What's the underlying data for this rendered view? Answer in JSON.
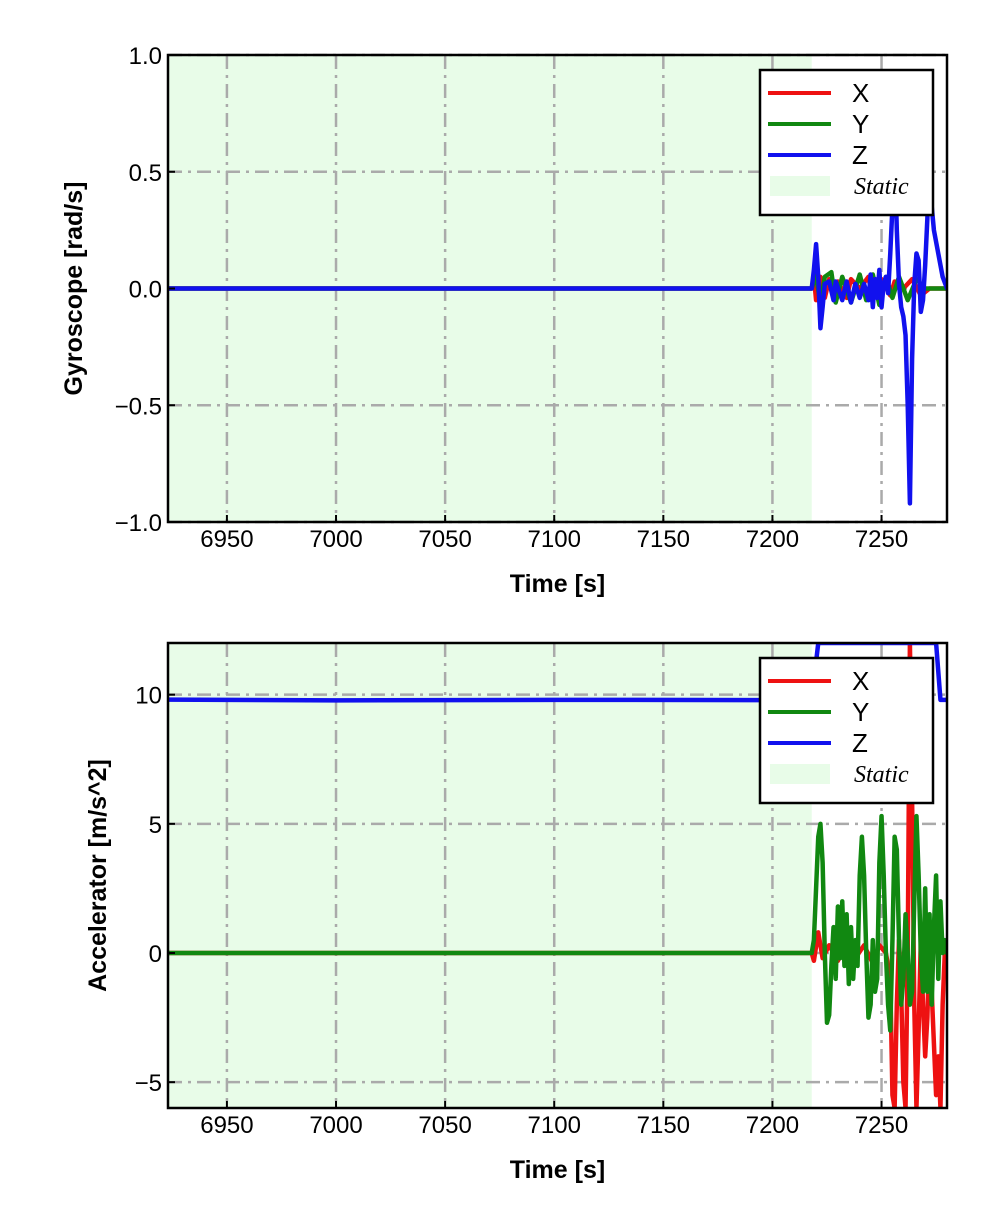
{
  "chart_data": [
    {
      "type": "line",
      "xlabel": "Time [s]",
      "ylabel": "Gyroscope [rad/s]",
      "xlim": [
        6923,
        7280
      ],
      "ylim": [
        -1.0,
        1.0
      ],
      "x_ticks": [
        6950,
        7000,
        7050,
        7100,
        7150,
        7200,
        7250
      ],
      "y_ticks": [
        -1.0,
        -0.5,
        0.0,
        0.5,
        1.0
      ],
      "y_tick_labels": [
        "−1.0",
        "−0.5",
        "0.0",
        "0.5",
        "1.0"
      ],
      "grid": true,
      "legend_position": "top-right",
      "static_region": {
        "label": "Static",
        "x_start": 6923,
        "x_end": 7218,
        "color": "#e8fce8"
      },
      "series": [
        {
          "name": "X",
          "color": "#ee1111",
          "points": [
            [
              6923,
              0
            ],
            [
              7218,
              0
            ],
            [
              7219,
              0.05
            ],
            [
              7220,
              -0.05
            ],
            [
              7222,
              0.05
            ],
            [
              7224,
              -0.04
            ],
            [
              7226,
              0.04
            ],
            [
              7228,
              -0.03
            ],
            [
              7230,
              0.03
            ],
            [
              7234,
              -0.04
            ],
            [
              7236,
              0.04
            ],
            [
              7240,
              0
            ],
            [
              7244,
              0.05
            ],
            [
              7246,
              -0.05
            ],
            [
              7250,
              0.04
            ],
            [
              7254,
              -0.03
            ],
            [
              7256,
              0.03
            ],
            [
              7260,
              0
            ],
            [
              7264,
              0.04
            ],
            [
              7268,
              -0.03
            ],
            [
              7272,
              0
            ],
            [
              7280,
              0
            ]
          ]
        },
        {
          "name": "Y",
          "color": "#118811",
          "points": [
            [
              6923,
              0
            ],
            [
              7218,
              0
            ],
            [
              7220,
              0.06
            ],
            [
              7222,
              -0.07
            ],
            [
              7224,
              0.05
            ],
            [
              7227,
              0.07
            ],
            [
              7229,
              -0.06
            ],
            [
              7232,
              0.05
            ],
            [
              7236,
              -0.06
            ],
            [
              7240,
              0.06
            ],
            [
              7243,
              -0.05
            ],
            [
              7246,
              0.06
            ],
            [
              7249,
              -0.07
            ],
            [
              7252,
              0.05
            ],
            [
              7255,
              -0.04
            ],
            [
              7258,
              0.05
            ],
            [
              7262,
              -0.05
            ],
            [
              7266,
              0.04
            ],
            [
              7270,
              0
            ],
            [
              7280,
              0
            ]
          ]
        },
        {
          "name": "Z",
          "color": "#1111ee",
          "points": [
            [
              6923,
              0
            ],
            [
              7218,
              0
            ],
            [
              7219,
              0.08
            ],
            [
              7220,
              0.19
            ],
            [
              7221,
              0.05
            ],
            [
              7222,
              -0.17
            ],
            [
              7223,
              -0.08
            ],
            [
              7224,
              0.02
            ],
            [
              7226,
              0.03
            ],
            [
              7228,
              -0.05
            ],
            [
              7229,
              0.03
            ],
            [
              7232,
              -0.05
            ],
            [
              7234,
              0.03
            ],
            [
              7236,
              -0.06
            ],
            [
              7238,
              0.02
            ],
            [
              7240,
              -0.04
            ],
            [
              7242,
              0.02
            ],
            [
              7244,
              -0.05
            ],
            [
              7245,
              0.06
            ],
            [
              7246,
              -0.08
            ],
            [
              7247,
              0.04
            ],
            [
              7248,
              -0.04
            ],
            [
              7249,
              0.08
            ],
            [
              7250,
              -0.08
            ],
            [
              7251,
              0.02
            ],
            [
              7252,
              0.05
            ],
            [
              7253,
              -0.02
            ],
            [
              7254,
              0.15
            ],
            [
              7255,
              0.35
            ],
            [
              7256,
              0.6
            ],
            [
              7257,
              0.25
            ],
            [
              7258,
              0.02
            ],
            [
              7259,
              -0.08
            ],
            [
              7260,
              -0.12
            ],
            [
              7261,
              -0.2
            ],
            [
              7262,
              -0.5
            ],
            [
              7263,
              -0.92
            ],
            [
              7264,
              -0.3
            ],
            [
              7265,
              0.02
            ],
            [
              7266,
              0.15
            ],
            [
              7267,
              0.12
            ],
            [
              7268,
              -0.1
            ],
            [
              7269,
              -0.05
            ],
            [
              7270,
              0.1
            ],
            [
              7271,
              0.3
            ],
            [
              7272,
              0.56
            ],
            [
              7273,
              0.35
            ],
            [
              7274,
              0.25
            ],
            [
              7276,
              0.15
            ],
            [
              7278,
              0.05
            ],
            [
              7280,
              0
            ]
          ]
        }
      ]
    },
    {
      "type": "line",
      "xlabel": "Time [s]",
      "ylabel": "Accelerator [m/s^2]",
      "xlim": [
        6923,
        7280
      ],
      "ylim": [
        -6.0,
        12.0
      ],
      "x_ticks": [
        6950,
        7000,
        7050,
        7100,
        7150,
        7200,
        7250
      ],
      "y_ticks": [
        -5,
        0,
        5,
        10
      ],
      "y_tick_labels": [
        "−5",
        "0",
        "5",
        "10"
      ],
      "grid": true,
      "legend_position": "top-right",
      "static_region": {
        "label": "Static",
        "x_start": 6923,
        "x_end": 7218,
        "color": "#e8fce8"
      },
      "series": [
        {
          "name": "X",
          "color": "#ee1111",
          "points": [
            [
              6923,
              0
            ],
            [
              7218,
              0
            ],
            [
              7219,
              -0.3
            ],
            [
              7221,
              0.8
            ],
            [
              7223,
              -0.2
            ],
            [
              7226,
              0.3
            ],
            [
              7230,
              -0.3
            ],
            [
              7234,
              0.4
            ],
            [
              7238,
              -0.2
            ],
            [
              7242,
              0.3
            ],
            [
              7246,
              -0.4
            ],
            [
              7249,
              0.3
            ],
            [
              7252,
              0
            ],
            [
              7254,
              -1.0
            ],
            [
              7255,
              -5.5
            ],
            [
              7256,
              -6
            ],
            [
              7257,
              -2
            ],
            [
              7258,
              0.5
            ],
            [
              7259,
              -1.5
            ],
            [
              7260,
              -5
            ],
            [
              7261,
              -6
            ],
            [
              7262,
              0
            ],
            [
              7263,
              12
            ],
            [
              7264,
              6
            ],
            [
              7265,
              -2
            ],
            [
              7266,
              -6
            ],
            [
              7267,
              -3
            ],
            [
              7268,
              0.5
            ],
            [
              7269,
              -2
            ],
            [
              7270,
              -4
            ],
            [
              7271,
              -2.5
            ],
            [
              7272,
              0.5
            ],
            [
              7273,
              -1.5
            ],
            [
              7274,
              -3.5
            ],
            [
              7275,
              -5.5
            ],
            [
              7276,
              -4
            ],
            [
              7277,
              -6
            ],
            [
              7278,
              -2
            ],
            [
              7279,
              0
            ],
            [
              7280,
              0
            ]
          ]
        },
        {
          "name": "Y",
          "color": "#118811",
          "points": [
            [
              6923,
              0
            ],
            [
              7218,
              0
            ],
            [
              7219,
              0.5
            ],
            [
              7220,
              2.5
            ],
            [
              7221,
              4.5
            ],
            [
              7222,
              5.0
            ],
            [
              7223,
              3.5
            ],
            [
              7224,
              0
            ],
            [
              7225,
              -2.7
            ],
            [
              7226,
              -2.4
            ],
            [
              7227,
              -0.5
            ],
            [
              7228,
              1.0
            ],
            [
              7229,
              -1.0
            ],
            [
              7230,
              1.8
            ],
            [
              7231,
              -0.2
            ],
            [
              7232,
              2.0
            ],
            [
              7233,
              -0.5
            ],
            [
              7234,
              1.5
            ],
            [
              7235,
              -1.2
            ],
            [
              7236,
              1.0
            ],
            [
              7237,
              -1.0
            ],
            [
              7238,
              0.5
            ],
            [
              7239,
              -0.5
            ],
            [
              7240,
              3.0
            ],
            [
              7241,
              4.5
            ],
            [
              7242,
              3.0
            ],
            [
              7243,
              0
            ],
            [
              7244,
              -2.5
            ],
            [
              7245,
              -2.0
            ],
            [
              7246,
              0.5
            ],
            [
              7247,
              -1.5
            ],
            [
              7248,
              -1.0
            ],
            [
              7249,
              3.5
            ],
            [
              7250,
              5.3
            ],
            [
              7251,
              3.0
            ],
            [
              7252,
              0
            ],
            [
              7253,
              -2.0
            ],
            [
              7254,
              -3.0
            ],
            [
              7255,
              0.5
            ],
            [
              7256,
              4.5
            ],
            [
              7257,
              4.0
            ],
            [
              7258,
              0.5
            ],
            [
              7259,
              -2.0
            ],
            [
              7260,
              -1.0
            ],
            [
              7261,
              1.5
            ],
            [
              7262,
              0
            ],
            [
              7263,
              -2.0
            ],
            [
              7264,
              -1.5
            ],
            [
              7265,
              2.0
            ],
            [
              7266,
              5.3
            ],
            [
              7267,
              3.0
            ],
            [
              7268,
              0
            ],
            [
              7269,
              -1.5
            ],
            [
              7270,
              2.5
            ],
            [
              7271,
              -1.5
            ],
            [
              7272,
              1.5
            ],
            [
              7273,
              -2.0
            ],
            [
              7274,
              1.0
            ],
            [
              7275,
              3.0
            ],
            [
              7276,
              -1.0
            ],
            [
              7277,
              2.0
            ],
            [
              7278,
              0
            ],
            [
              7279,
              0.5
            ],
            [
              7280,
              0
            ]
          ]
        },
        {
          "name": "Z",
          "color": "#1111ee",
          "points": [
            [
              6923,
              9.81
            ],
            [
              7000,
              9.78
            ],
            [
              7100,
              9.8
            ],
            [
              7200,
              9.79
            ],
            [
              7218,
              9.8
            ],
            [
              7221,
              12
            ],
            [
              7250,
              12
            ],
            [
              7275,
              12
            ],
            [
              7277,
              9.8
            ],
            [
              7280,
              9.8
            ]
          ]
        }
      ]
    }
  ]
}
